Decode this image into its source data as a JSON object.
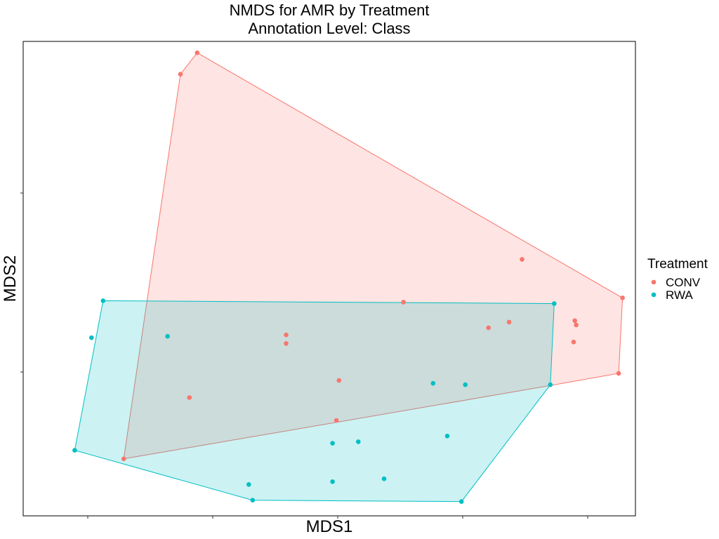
{
  "chart_data": {
    "type": "scatter",
    "title_line1": "NMDS for AMR by Treatment",
    "title_line2": "Annotation Level: Class",
    "xlabel": "MDS1",
    "ylabel": "MDS2",
    "xlim": [
      -0.1,
      4.65
    ],
    "ylim": [
      -0.15,
      3.18
    ],
    "grid": false,
    "tick_labels_visible": false,
    "legend": {
      "title": "Treatment",
      "placement": "right",
      "entries": [
        {
          "name": "CONV",
          "color": "#F8766D"
        },
        {
          "name": "RWA",
          "color": "#00BFC4"
        }
      ]
    },
    "hull_opacity": 0.2,
    "series": [
      {
        "name": "CONV",
        "color": "#F8766D",
        "points": [
          [
            1.25,
            3.1
          ],
          [
            1.12,
            2.95
          ],
          [
            0.68,
            0.25
          ],
          [
            4.52,
            0.85
          ],
          [
            4.55,
            1.38
          ],
          [
            3.77,
            1.65
          ],
          [
            4.17,
            1.07
          ],
          [
            4.18,
            1.22
          ],
          [
            4.19,
            1.19
          ],
          [
            3.67,
            1.21
          ],
          [
            3.51,
            1.17
          ],
          [
            2.85,
            1.35
          ],
          [
            1.94,
            1.12
          ],
          [
            1.94,
            1.06
          ],
          [
            2.35,
            0.8
          ],
          [
            2.33,
            0.52
          ],
          [
            1.19,
            0.68
          ]
        ],
        "hull": [
          [
            1.25,
            3.1
          ],
          [
            1.12,
            2.95
          ],
          [
            0.68,
            0.25
          ],
          [
            3.96,
            0.76
          ],
          [
            4.52,
            0.85
          ],
          [
            4.55,
            1.38
          ]
        ]
      },
      {
        "name": "RWA",
        "color": "#00BFC4",
        "points": [
          [
            0.52,
            1.36
          ],
          [
            0.43,
            1.1
          ],
          [
            1.02,
            1.11
          ],
          [
            0.3,
            0.31
          ],
          [
            4.02,
            1.34
          ],
          [
            3.99,
            0.77
          ],
          [
            3.08,
            0.78
          ],
          [
            3.33,
            0.77
          ],
          [
            3.19,
            0.41
          ],
          [
            2.3,
            0.36
          ],
          [
            2.5,
            0.37
          ],
          [
            2.3,
            0.09
          ],
          [
            2.7,
            0.11
          ],
          [
            1.65,
            0.07
          ],
          [
            1.68,
            -0.04
          ],
          [
            3.3,
            -0.05
          ]
        ],
        "hull": [
          [
            0.52,
            1.36
          ],
          [
            0.3,
            0.31
          ],
          [
            1.68,
            -0.04
          ],
          [
            3.3,
            -0.05
          ],
          [
            3.99,
            0.77
          ],
          [
            4.02,
            1.34
          ]
        ]
      }
    ]
  }
}
